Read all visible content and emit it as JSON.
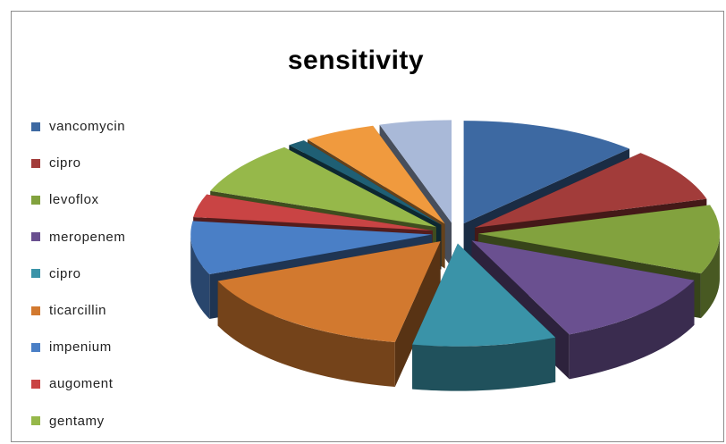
{
  "chart_data": {
    "type": "pie",
    "title": "sensitivity",
    "legend_position": "left",
    "categories": [
      "vancomycin",
      "cipro",
      "levoflox",
      "meropenem",
      "cipro",
      "ticarcillin",
      "impenium",
      "augoment",
      "gentamy"
    ],
    "values": [
      10,
      7,
      9,
      10,
      8,
      13,
      7,
      3,
      7
    ],
    "trailing_slices": [
      {
        "value": 1,
        "color": "#1f5f74"
      },
      {
        "value": 4,
        "color": "#f09a3e"
      },
      {
        "value": 4,
        "color": "#a9b9d8"
      }
    ],
    "colors": [
      "#3d69a2",
      "#a23c3a",
      "#82a23e",
      "#6a5090",
      "#3a93a8",
      "#d2792f",
      "#4a7fc6",
      "#c94444",
      "#96b84a"
    ]
  }
}
